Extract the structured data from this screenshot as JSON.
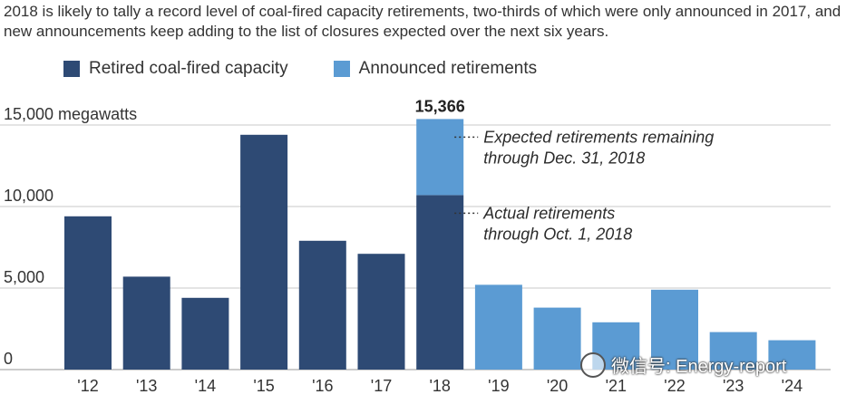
{
  "subtitle": "2018 is likely to tally a record level of coal-fired capacity retirements, two-thirds of which were only announced in 2017, and new announcements keep adding to the list of closures expected over the next six years.",
  "legend": {
    "retired_label": "Retired coal-fired capacity",
    "announced_label": "Announced retirements"
  },
  "colors": {
    "retired": "#2e4a74",
    "announced": "#5b9bd3",
    "grid": "#c8c8c8"
  },
  "watermark": "微信号: Energy-report",
  "chart_data": {
    "type": "bar",
    "categories": [
      "'12",
      "'13",
      "'14",
      "'15",
      "'16",
      "'17",
      "'18",
      "'19",
      "'20",
      "'21",
      "'22",
      "'23",
      "'24"
    ],
    "series": [
      {
        "name": "Retired coal-fired capacity",
        "values": [
          9400,
          5700,
          4400,
          14400,
          7900,
          7100,
          10700,
          0,
          0,
          0,
          0,
          0,
          0
        ]
      },
      {
        "name": "Announced retirements",
        "values": [
          0,
          0,
          0,
          0,
          0,
          0,
          4666,
          5200,
          3800,
          2900,
          4900,
          2300,
          1800
        ]
      }
    ],
    "stacked": true,
    "ylim": [
      0,
      15000
    ],
    "yticks": [
      0,
      5000,
      10000,
      15000
    ],
    "ytick_labels": [
      "0",
      "5,000",
      "10,000",
      "15,000 megawatts"
    ],
    "total_label": {
      "category": "'18",
      "text": "15,366"
    },
    "annotations": [
      {
        "category": "'18",
        "segment": "Announced retirements",
        "lines": [
          "Expected retirements remaining",
          "through Dec. 31, 2018"
        ]
      },
      {
        "category": "'18",
        "segment": "Retired coal-fired capacity",
        "lines": [
          "Actual retirements",
          "through Oct. 1, 2018"
        ]
      }
    ]
  }
}
